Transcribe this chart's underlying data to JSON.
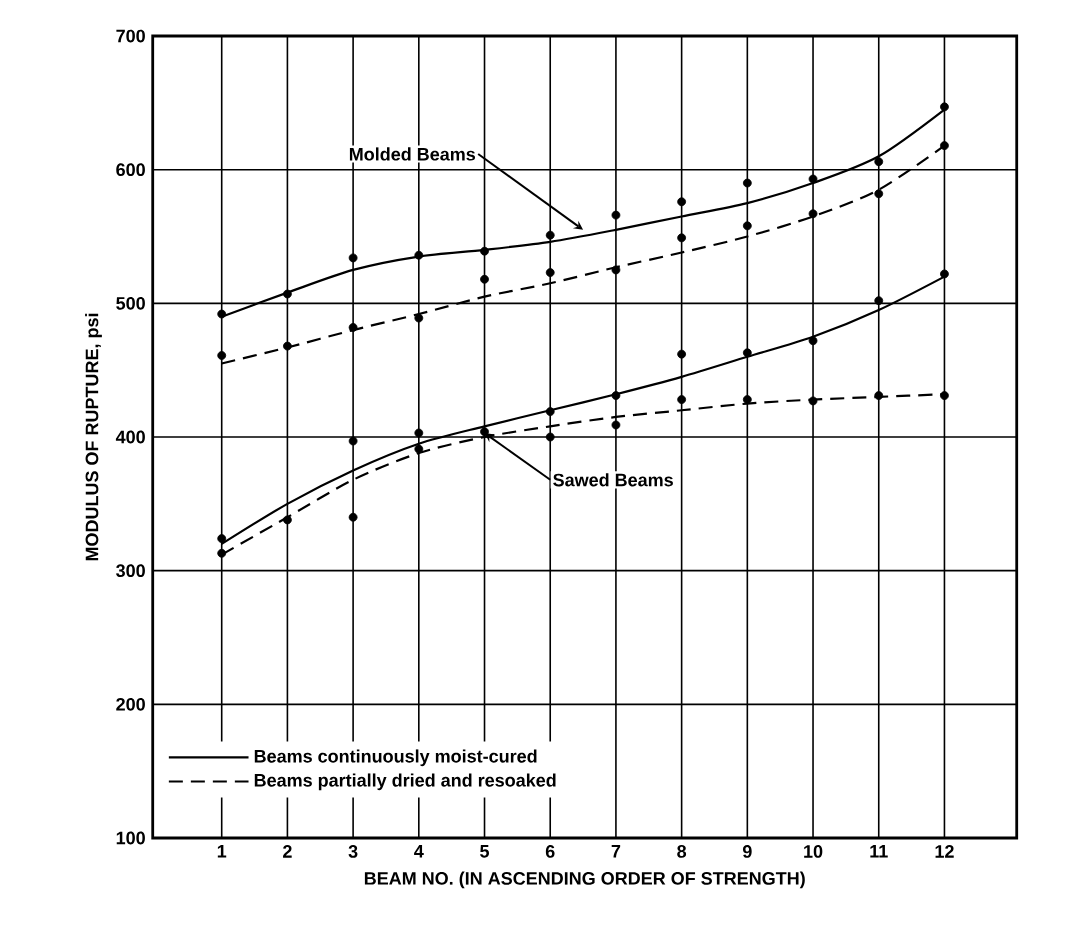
{
  "chart_data": {
    "type": "line",
    "xlabel": "BEAM NO. (IN ASCENDING ORDER OF STRENGTH)",
    "ylabel": "MODULUS OF RUPTURE, psi",
    "x": [
      1,
      2,
      3,
      4,
      5,
      6,
      7,
      8,
      9,
      10,
      11,
      12
    ],
    "xlim": [
      -0.05,
      13.1
    ],
    "ylim": [
      100,
      700
    ],
    "xticks": [
      1,
      2,
      3,
      4,
      5,
      6,
      7,
      8,
      9,
      10,
      11,
      12
    ],
    "yticks": [
      100,
      200,
      300,
      400,
      500,
      600,
      700
    ],
    "grid": true,
    "legend": "bottom left",
    "series": [
      {
        "name": "Beams continuously moist-cured",
        "color": "#000000",
        "line_style": "solid",
        "marker": "none",
        "values": [
          490,
          508,
          525,
          535,
          540,
          546,
          555,
          565,
          575,
          590,
          610,
          645
        ]
      },
      {
        "name": "Beams partially dried and resoaked",
        "color": "#000000",
        "line_style": "dashed",
        "marker": "none",
        "values": [
          455,
          467,
          480,
          492,
          505,
          515,
          527,
          538,
          550,
          565,
          585,
          618
        ]
      },
      {
        "color": "#000000",
        "line_style": "solid",
        "marker": "none",
        "values": [
          320,
          350,
          375,
          395,
          408,
          420,
          432,
          445,
          460,
          475,
          495,
          520
        ]
      },
      {
        "color": "#000000",
        "line_style": "dashed",
        "marker": "none",
        "values": [
          312,
          340,
          368,
          388,
          400,
          408,
          415,
          420,
          425,
          428,
          430,
          432
        ]
      },
      {
        "type": "scatter",
        "color": "#000000",
        "marker": "circle",
        "x": [
          1,
          2,
          3,
          4,
          5,
          6,
          7,
          8,
          9,
          10,
          11,
          12,
          1,
          2,
          3,
          4,
          5,
          6,
          7,
          8,
          9,
          10,
          11,
          12
        ],
        "values": [
          492,
          507,
          534,
          536,
          539,
          551,
          566,
          576,
          590,
          593,
          606,
          647,
          461,
          468,
          482,
          489,
          518,
          523,
          525,
          549,
          558,
          567,
          582,
          618
        ]
      },
      {
        "type": "scatter",
        "color": "#000000",
        "marker": "circle",
        "x": [
          1,
          1,
          2,
          3,
          3,
          4,
          4,
          5,
          6,
          6,
          7,
          7,
          8,
          8,
          9,
          9,
          10,
          10,
          11,
          11,
          12,
          12
        ],
        "values": [
          324,
          313,
          338,
          397,
          340,
          403,
          391,
          404,
          419,
          400,
          431,
          409,
          462,
          428,
          463,
          428,
          472,
          427,
          502,
          431,
          522,
          431
        ]
      }
    ],
    "annotations": [
      {
        "text": "Molded Beams",
        "x": 6.5,
        "y": 555
      },
      {
        "text": "Sawed Beams",
        "x": 5,
        "y": 403
      }
    ]
  }
}
